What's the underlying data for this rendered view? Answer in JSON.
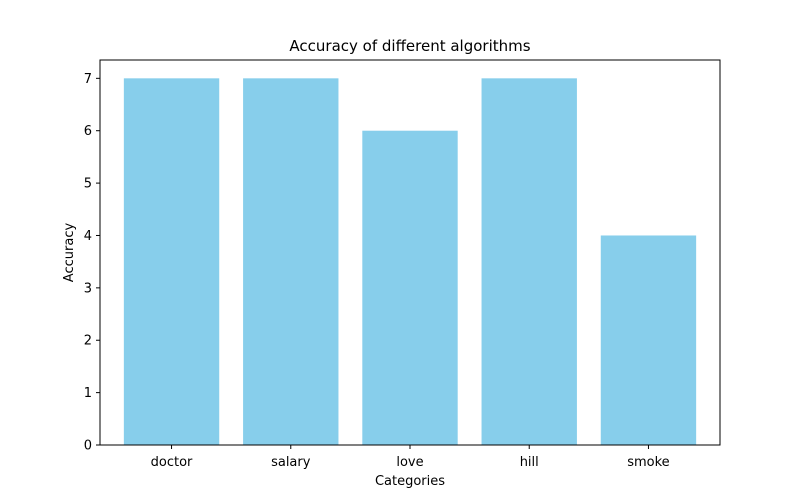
{
  "chart_data": {
    "type": "bar",
    "title": "Accuracy of different algorithms",
    "xlabel": "Categories",
    "ylabel": "Accuracy",
    "categories": [
      "doctor",
      "salary",
      "love",
      "hill",
      "smoke"
    ],
    "values": [
      7,
      7,
      6,
      7,
      4
    ],
    "ylim": [
      0,
      7.35
    ],
    "yticks": [
      0,
      1,
      2,
      3,
      4,
      5,
      6,
      7
    ],
    "grid": false,
    "bar_color": "#87CEEB"
  }
}
